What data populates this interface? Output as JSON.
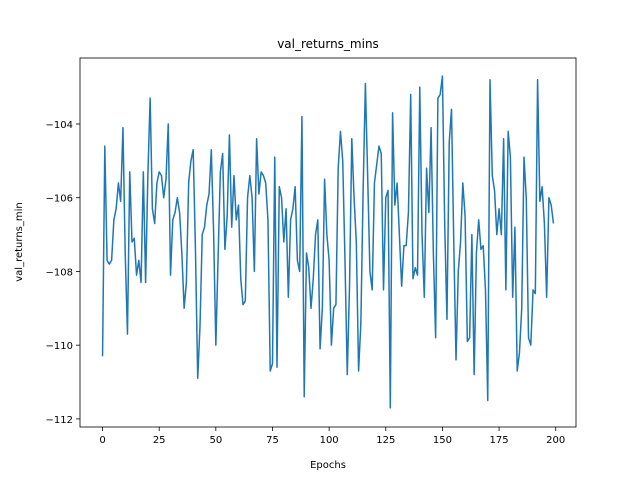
{
  "chart_data": {
    "type": "line",
    "title": "val_returns_mins",
    "x_label": "Epochs",
    "y_label": "val_returns_min",
    "color": "#1f77b4",
    "x": [
      0,
      1,
      2,
      3,
      4,
      5,
      6,
      7,
      8,
      9,
      10,
      11,
      12,
      13,
      14,
      15,
      16,
      17,
      18,
      19,
      20,
      21,
      22,
      23,
      24,
      25,
      26,
      27,
      28,
      29,
      30,
      31,
      32,
      33,
      34,
      35,
      36,
      37,
      38,
      39,
      40,
      41,
      42,
      43,
      44,
      45,
      46,
      47,
      48,
      49,
      50,
      51,
      52,
      53,
      54,
      55,
      56,
      57,
      58,
      59,
      60,
      61,
      62,
      63,
      64,
      65,
      66,
      67,
      68,
      69,
      70,
      71,
      72,
      73,
      74,
      75,
      76,
      77,
      78,
      79,
      80,
      81,
      82,
      83,
      84,
      85,
      86,
      87,
      88,
      89,
      90,
      91,
      92,
      93,
      94,
      95,
      96,
      97,
      98,
      99,
      100,
      101,
      102,
      103,
      104,
      105,
      106,
      107,
      108,
      109,
      110,
      111,
      112,
      113,
      114,
      115,
      116,
      117,
      118,
      119,
      120,
      121,
      122,
      123,
      124,
      125,
      126,
      127,
      128,
      129,
      130,
      131,
      132,
      133,
      134,
      135,
      136,
      137,
      138,
      139,
      140,
      141,
      142,
      143,
      144,
      145,
      146,
      147,
      148,
      149,
      150,
      151,
      152,
      153,
      154,
      155,
      156,
      157,
      158,
      159,
      160,
      161,
      162,
      163,
      164,
      165,
      166,
      167,
      168,
      169,
      170,
      171,
      172,
      173,
      174,
      175,
      176,
      177,
      178,
      179,
      180,
      181,
      182,
      183,
      184,
      185,
      186,
      187,
      188,
      189,
      190,
      191,
      192,
      193,
      194,
      195,
      196,
      197,
      198,
      199
    ],
    "values": [
      -110.3,
      -104.6,
      -107.7,
      -107.8,
      -107.7,
      -106.6,
      -106.3,
      -105.6,
      -106.1,
      -104.1,
      -107.5,
      -109.7,
      -105.3,
      -107.2,
      -107.1,
      -108.1,
      -107.7,
      -108.3,
      -105.3,
      -108.3,
      -105.4,
      -103.3,
      -106.3,
      -106.7,
      -105.6,
      -105.3,
      -105.4,
      -106.0,
      -105.5,
      -104.0,
      -108.1,
      -106.6,
      -106.4,
      -106.0,
      -106.4,
      -107.5,
      -109.0,
      -108.3,
      -105.6,
      -105.0,
      -104.7,
      -107.4,
      -110.9,
      -109.5,
      -107.0,
      -106.8,
      -106.2,
      -105.9,
      -104.7,
      -106.9,
      -110.0,
      -107.6,
      -105.3,
      -104.8,
      -107.4,
      -106.5,
      -104.3,
      -106.8,
      -105.4,
      -106.6,
      -106.2,
      -108.2,
      -108.9,
      -108.8,
      -106.0,
      -105.4,
      -106.0,
      -108.0,
      -104.4,
      -105.9,
      -105.3,
      -105.4,
      -105.6,
      -106.6,
      -110.7,
      -110.5,
      -104.9,
      -110.6,
      -105.7,
      -106.0,
      -107.2,
      -106.3,
      -108.7,
      -106.6,
      -106.3,
      -105.7,
      -107.7,
      -108.0,
      -103.8,
      -111.4,
      -107.5,
      -107.9,
      -109.0,
      -108.2,
      -107.0,
      -106.6,
      -110.1,
      -109.0,
      -105.5,
      -107.0,
      -107.7,
      -110.0,
      -109.0,
      -108.9,
      -105.2,
      -104.2,
      -105.0,
      -107.7,
      -110.8,
      -108.4,
      -104.4,
      -106.0,
      -107.2,
      -110.7,
      -109.4,
      -105.8,
      -102.9,
      -105.4,
      -108.0,
      -108.5,
      -105.6,
      -105.1,
      -104.6,
      -104.8,
      -108.5,
      -106.0,
      -105.8,
      -111.7,
      -103.7,
      -106.2,
      -105.6,
      -107.0,
      -108.4,
      -107.3,
      -107.3,
      -106.4,
      -103.2,
      -108.2,
      -107.9,
      -108.1,
      -103.0,
      -107.0,
      -108.7,
      -105.2,
      -106.4,
      -104.1,
      -107.5,
      -109.8,
      -103.3,
      -103.2,
      -102.7,
      -106.7,
      -109.3,
      -104.5,
      -103.6,
      -107.2,
      -110.4,
      -108.0,
      -107.2,
      -105.6,
      -106.5,
      -109.9,
      -109.8,
      -107.0,
      -110.8,
      -107.5,
      -106.6,
      -107.4,
      -107.3,
      -108.5,
      -111.5,
      -102.8,
      -105.4,
      -105.8,
      -107.0,
      -106.3,
      -107.0,
      -104.4,
      -108.5,
      -104.2,
      -104.9,
      -108.7,
      -106.8,
      -110.7,
      -110.2,
      -109.0,
      -104.9,
      -106.0,
      -109.8,
      -110.0,
      -108.5,
      -108.6,
      -102.8,
      -106.1,
      -105.7,
      -106.7,
      -108.7,
      -106.0,
      -106.2,
      -106.7
    ],
    "xlim": [
      -9.95,
      208.95
    ],
    "ylim": [
      -112.22,
      -102.21
    ],
    "xticks": [
      0,
      25,
      50,
      75,
      100,
      125,
      150,
      175,
      200
    ],
    "yticks": [
      {
        "value": -112,
        "label": "−112"
      },
      {
        "value": -110,
        "label": "−110"
      },
      {
        "value": -108,
        "label": "−108"
      },
      {
        "value": -106,
        "label": "−106"
      },
      {
        "value": -104,
        "label": "−104"
      }
    ]
  }
}
